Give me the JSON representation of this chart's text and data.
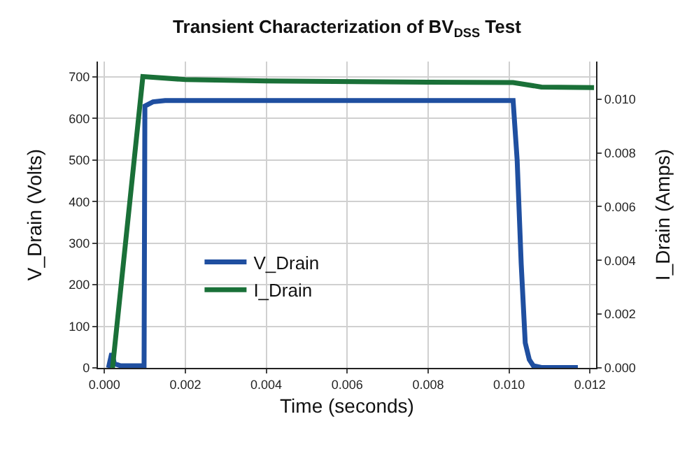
{
  "chart_data": {
    "type": "line",
    "title": "Transient Characterization of BV$_{DSS}$ Test",
    "xlabel": "Time (seconds)",
    "ylabel": "V_Drain (Volts)",
    "y2label": "I_Drain (Amps)",
    "xlim": [
      -0.00016,
      0.01215
    ],
    "xticks": [
      {
        "value": 0,
        "label": "0.000"
      },
      0.002,
      0.004,
      0.006,
      0.008,
      {
        "value": 0.01,
        "label": "0.010"
      },
      0.012
    ],
    "ylim": [
      0,
      737
    ],
    "yticks": [
      0,
      100,
      200,
      300,
      400,
      500,
      600,
      700
    ],
    "y2lim": [
      0,
      0.0114
    ],
    "y2ticks": [
      {
        "value": 0,
        "label": "0.000"
      },
      0.002,
      0.004,
      0.006,
      0.008,
      {
        "value": 0.01,
        "label": "0.010"
      }
    ],
    "grid": true,
    "legend": "bottom",
    "marker": "none",
    "line_style": "solid",
    "series": [
      {
        "name": "V_Drain",
        "color": "#1f4fa0",
        "x": [
          0.0001,
          0.00018,
          0.00025,
          0.0004,
          0.00098,
          0.001,
          0.0012,
          0.0015,
          0.0101,
          0.0102,
          0.0103,
          0.0104,
          0.0105,
          0.0106,
          0.0108,
          0.0117
        ],
        "values": [
          0,
          35,
          10,
          5,
          5,
          630,
          640,
          643,
          643,
          500,
          250,
          60,
          20,
          5,
          1,
          1
        ]
      },
      {
        "name": "I_Drain",
        "color": "#1a7038",
        "axis": "y2",
        "x": [
          0.0002,
          0.00095,
          0.002,
          0.004,
          0.008,
          0.0101,
          0.0108,
          0.0121
        ],
        "values": [
          0,
          0.01084,
          0.01073,
          0.01068,
          0.01063,
          0.01062,
          0.01045,
          0.01043
        ]
      }
    ]
  }
}
